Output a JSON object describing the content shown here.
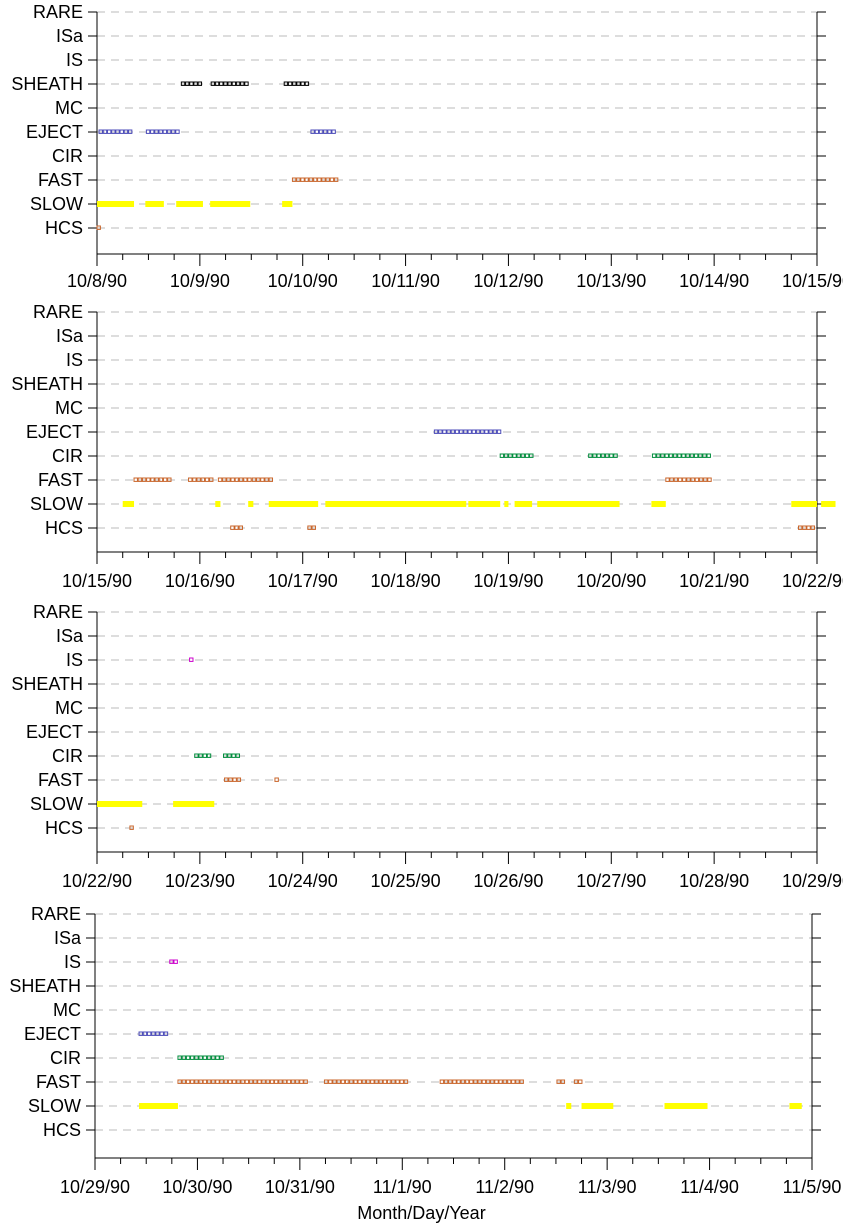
{
  "chart_data": {
    "type": "timeline",
    "category_order_top_to_bottom": [
      "RARE",
      "ISa",
      "IS",
      "SHEATH",
      "MC",
      "EJECT",
      "CIR",
      "FAST",
      "SLOW",
      "HCS"
    ],
    "xlabel": "Month/Day/Year",
    "colors": {
      "SLOW": "#ffff00",
      "FAST": "#c8642a",
      "CIR": "#008c3c",
      "EJECT": "#4a4ab8",
      "SHEATH": "#000000",
      "IS": "#cc00cc",
      "HCS": "#c8642a",
      "grid": "#bbbbbb"
    },
    "panels": [
      {
        "tick_labels": [
          "10/8/90",
          "10/9/90",
          "10/10/90",
          "10/11/90",
          "10/12/90",
          "10/13/90",
          "10/14/90",
          "10/15/90"
        ],
        "x_range_days": [
          0,
          7
        ],
        "intervals": {
          "SHEATH": [
            [
              0.82,
              1.02
            ],
            [
              1.11,
              1.49
            ],
            [
              1.82,
              2.08
            ]
          ],
          "EJECT": [
            [
              0.02,
              0.36
            ],
            [
              0.48,
              0.82
            ],
            [
              2.08,
              2.33
            ]
          ],
          "FAST": [
            [
              1.9,
              2.33
            ]
          ],
          "SLOW": [
            [
              0.0,
              0.36
            ],
            [
              0.47,
              0.65
            ],
            [
              0.77,
              1.03
            ],
            [
              1.1,
              1.49
            ],
            [
              1.8,
              1.9
            ]
          ],
          "HCS": [
            [
              0.0,
              0.02
            ]
          ]
        }
      },
      {
        "tick_labels": [
          "10/15/90",
          "10/16/90",
          "10/17/90",
          "10/18/90",
          "10/19/90",
          "10/20/90",
          "10/21/90",
          "10/22/90"
        ],
        "x_range_days": [
          0,
          7
        ],
        "intervals": {
          "EJECT": [
            [
              3.28,
              3.92
            ]
          ],
          "CIR": [
            [
              3.92,
              4.23
            ],
            [
              4.78,
              5.06
            ],
            [
              5.4,
              5.99
            ]
          ],
          "FAST": [
            [
              0.36,
              0.73
            ],
            [
              0.89,
              1.14
            ],
            [
              1.18,
              1.49
            ],
            [
              1.51,
              1.7
            ],
            [
              5.53,
              5.99
            ]
          ],
          "SLOW": [
            [
              0.25,
              0.36
            ],
            [
              1.15,
              1.2
            ],
            [
              1.47,
              1.52
            ],
            [
              1.67,
              2.15
            ],
            [
              2.22,
              3.59
            ],
            [
              3.61,
              3.92
            ],
            [
              3.96,
              4.0
            ],
            [
              4.06,
              4.23
            ],
            [
              4.28,
              5.08
            ],
            [
              5.39,
              5.53
            ],
            [
              6.75,
              7.0
            ],
            [
              7.04,
              7.18
            ]
          ],
          "HCS": [
            [
              1.3,
              1.44
            ],
            [
              2.05,
              2.14
            ],
            [
              6.82,
              7.0
            ]
          ]
        }
      },
      {
        "tick_labels": [
          "10/22/90",
          "10/23/90",
          "10/24/90",
          "10/25/90",
          "10/26/90",
          "10/27/90",
          "10/28/90",
          "10/29/90"
        ],
        "x_range_days": [
          0,
          7
        ],
        "intervals": {
          "IS": [
            [
              0.9,
              0.93
            ]
          ],
          "CIR": [
            [
              0.95,
              1.13
            ],
            [
              1.23,
              1.39
            ]
          ],
          "FAST": [
            [
              1.24,
              1.39
            ],
            [
              1.73,
              1.76
            ]
          ],
          "SLOW": [
            [
              0.0,
              0.44
            ],
            [
              0.74,
              1.14
            ]
          ],
          "HCS": [
            [
              0.32,
              0.35
            ]
          ]
        }
      },
      {
        "tick_labels": [
          "10/29/90",
          "10/30/90",
          "10/31/90",
          "11/1/90",
          "11/2/90",
          "11/3/90",
          "11/4/90",
          "11/5/90"
        ],
        "x_range_days": [
          0,
          7
        ],
        "intervals": {
          "IS": [
            [
              0.73,
              0.81
            ]
          ],
          "EJECT": [
            [
              0.43,
              0.73
            ]
          ],
          "CIR": [
            [
              0.81,
              1.27
            ]
          ],
          "FAST": [
            [
              0.81,
              2.07
            ],
            [
              2.24,
              3.07
            ],
            [
              3.37,
              4.19
            ],
            [
              4.51,
              4.6
            ],
            [
              4.68,
              4.76
            ]
          ],
          "SLOW": [
            [
              0.43,
              0.81
            ],
            [
              4.6,
              4.65
            ],
            [
              4.75,
              5.06
            ],
            [
              5.56,
              5.98
            ],
            [
              6.78,
              6.9
            ]
          ]
        }
      }
    ]
  }
}
